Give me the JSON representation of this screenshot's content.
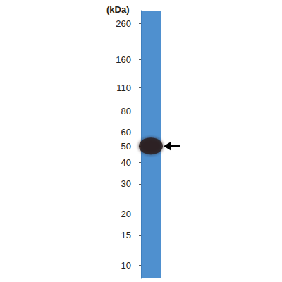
{
  "chart_data": {
    "type": "scatter",
    "ylabel": "(kDa)",
    "categories": [
      null
    ],
    "values": [
      50
    ],
    "marker": "ellipse",
    "color": "#2a1b1d",
    "ylim": [
      8.4,
      310
    ],
    "yticks": [
      260,
      160,
      110,
      80,
      60,
      50,
      40,
      30,
      20,
      15,
      10
    ],
    "log": "y",
    "grid": false,
    "tick_labels": "y"
  }
}
